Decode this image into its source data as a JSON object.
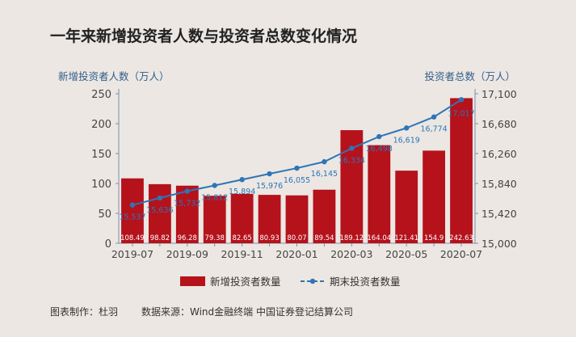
{
  "chart_data": {
    "type": "bar+line",
    "title": "一年来新增投资者人数与投资者总数变化情况",
    "y_left_label": "新增投资者人数（万人）",
    "y_right_label": "投资者总数（万人）",
    "y_left_ticks": [
      "0",
      "50",
      "100",
      "150",
      "200",
      "250"
    ],
    "y_left_range": [
      0,
      250
    ],
    "y_right_ticks": [
      "15,000",
      "15,420",
      "15,840",
      "16,260",
      "16,680",
      "17,100"
    ],
    "y_right_range": [
      15000,
      17100
    ],
    "x_tick_labels": [
      "2019-07",
      "2019-09",
      "2019-11",
      "2020-01",
      "2020-03",
      "2020-05",
      "2020-07"
    ],
    "categories": [
      "2019-07",
      "2019-08",
      "2019-09",
      "2019-10",
      "2019-11",
      "2019-12",
      "2020-01",
      "2020-02",
      "2020-03",
      "2020-04",
      "2020-05",
      "2020-06",
      "2020-07"
    ],
    "series": [
      {
        "name": "新增投资者数量",
        "type": "bar",
        "color": "#b5121b",
        "values": [
          108.49,
          98.82,
          96.28,
          79.38,
          82.65,
          80.93,
          80.07,
          89.54,
          189.12,
          164.04,
          121.41,
          154.9,
          242.63
        ],
        "labels": [
          "108.49",
          "98.82",
          "96.28",
          "79.38",
          "82.65",
          "80.93",
          "80.07",
          "89.54",
          "189.12",
          "164.04",
          "121.41",
          "154.9",
          "242.63"
        ]
      },
      {
        "name": "期末投资者数量",
        "type": "line",
        "color": "#2e75b6",
        "values": [
          15537,
          15636,
          15732,
          15812,
          15894,
          15976,
          16055,
          16145,
          16334,
          16498,
          16619,
          16774,
          17017
        ],
        "labels": [
          "15,537",
          "15,636",
          "15,732",
          "15,812",
          "15,894",
          "15,976",
          "16,055",
          "16,145",
          "16,334",
          "16,498",
          "16,619",
          "16,774",
          "17,017"
        ]
      }
    ]
  },
  "footer": {
    "author": "图表制作：杜羽",
    "source": "数据来源：Wind金融终端  中国证券登记结算公司"
  }
}
